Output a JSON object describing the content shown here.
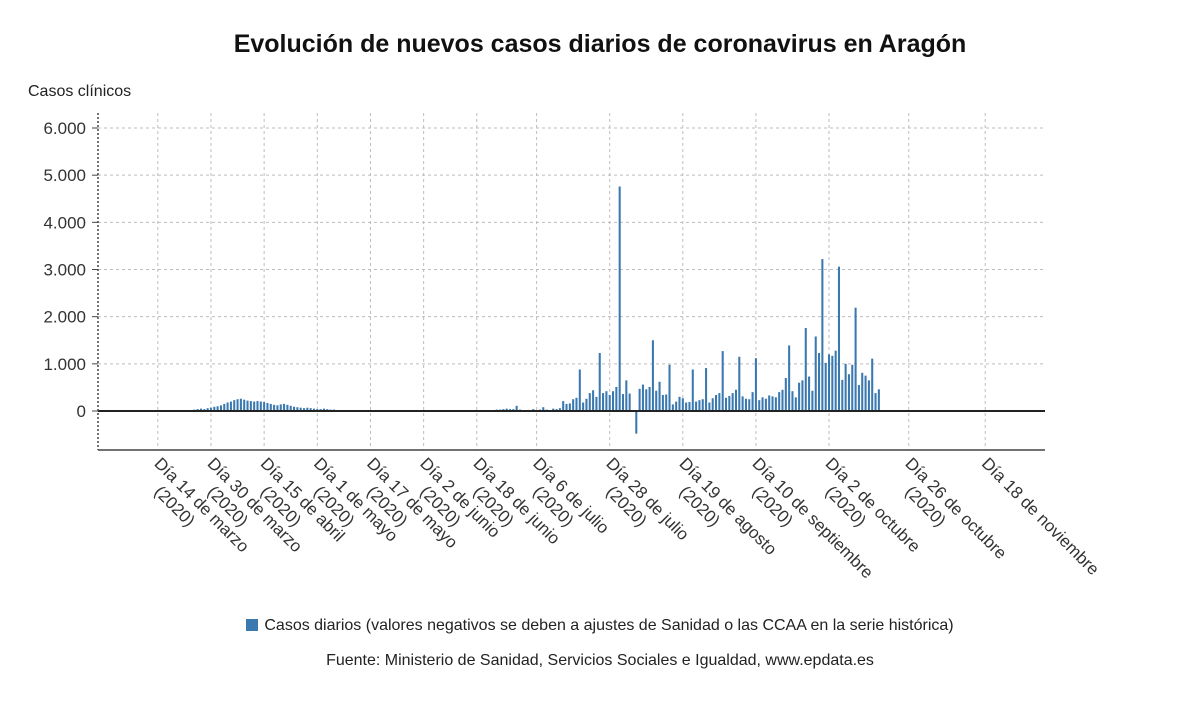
{
  "chart_data": {
    "type": "bar",
    "title": "Evolución de nuevos casos diarios de coronavirus en Aragón",
    "ylabel": "Casos clínicos",
    "ylim": [
      -800,
      6600
    ],
    "yticks": [
      0,
      1000,
      2000,
      3000,
      4000,
      5000,
      6000
    ],
    "ytick_labels": [
      "0",
      "1.000",
      "2.000",
      "3.000",
      "4.000",
      "5.000",
      "6.000"
    ],
    "x_tick_labels": [
      {
        "day": 14,
        "label": [
          "Día 14 de marzo",
          "(2020)"
        ]
      },
      {
        "day": 30,
        "label": [
          "Día 30 de marzo",
          "(2020)"
        ]
      },
      {
        "day": 46,
        "label": [
          "Día 15 de abril",
          "(2020)"
        ]
      },
      {
        "day": 62,
        "label": [
          "Día 1 de mayo",
          "(2020)"
        ]
      },
      {
        "day": 78,
        "label": [
          "Día 17 de mayo",
          "(2020)"
        ]
      },
      {
        "day": 94,
        "label": [
          "Día 2 de junio",
          "(2020)"
        ]
      },
      {
        "day": 110,
        "label": [
          "Día 18 de junio",
          "(2020)"
        ]
      },
      {
        "day": 128,
        "label": [
          "Día 6 de julio",
          "(2020)"
        ]
      },
      {
        "day": 150,
        "label": [
          "Día 28 de julio",
          "(2020)"
        ]
      },
      {
        "day": 172,
        "label": [
          "Día 19 de agosto",
          "(2020)"
        ]
      },
      {
        "day": 194,
        "label": [
          "Día 10 de septiembre",
          "(2020)"
        ]
      },
      {
        "day": 216,
        "label": [
          "Día 2 de octubre",
          "(2020)"
        ]
      },
      {
        "day": 240,
        "label": [
          "Día 26 de octubre",
          "(2020)"
        ]
      },
      {
        "day": 263,
        "label": [
          "Día 18 de noviembre",
          ""
        ]
      }
    ],
    "x_range_days": [
      -4,
      281
    ],
    "series": [
      {
        "name": "Casos diarios (valores negativos se deben a ajustes de Sanidad o las CCAA en la serie histórica)",
        "color": "#3a78b0",
        "start_day": 24,
        "values": [
          20,
          30,
          40,
          50,
          40,
          60,
          70,
          90,
          100,
          120,
          150,
          180,
          200,
          230,
          250,
          260,
          240,
          220,
          210,
          200,
          210,
          200,
          190,
          170,
          150,
          130,
          120,
          140,
          150,
          130,
          110,
          90,
          80,
          70,
          60,
          70,
          60,
          50,
          40,
          40,
          50,
          40,
          30,
          30,
          20,
          20,
          20,
          20,
          20,
          10,
          20,
          20,
          10,
          10,
          20,
          10,
          10,
          10,
          10,
          10,
          10,
          10,
          20,
          10,
          10,
          10,
          10,
          10,
          10,
          20,
          20,
          10,
          10,
          10,
          10,
          10,
          10,
          10,
          10,
          10,
          10,
          10,
          10,
          10,
          10,
          10,
          10,
          10,
          10,
          20,
          20,
          20,
          30,
          30,
          40,
          50,
          40,
          40,
          110,
          30,
          20,
          20,
          10,
          40,
          20,
          30,
          80,
          30,
          20,
          50,
          40,
          60,
          210,
          150,
          160,
          250,
          280,
          880,
          180,
          260,
          380,
          440,
          300,
          1230,
          380,
          420,
          340,
          420,
          510,
          4760,
          360,
          650,
          370,
          20,
          -480,
          470,
          560,
          460,
          510,
          1500,
          430,
          620,
          340,
          350,
          980,
          140,
          200,
          300,
          270,
          180,
          190,
          880,
          200,
          230,
          250,
          910,
          180,
          270,
          340,
          380,
          1270,
          280,
          320,
          380,
          450,
          1150,
          310,
          260,
          250,
          400,
          1120,
          230,
          290,
          260,
          330,
          310,
          290,
          400,
          450,
          700,
          1390,
          420,
          290,
          600,
          650,
          1760,
          730,
          430,
          1580,
          1230,
          3220,
          1020,
          1200,
          1170,
          1280,
          3060,
          660,
          1000,
          780,
          980,
          2190,
          550,
          810,
          750,
          650,
          1110,
          380,
          460
        ]
      }
    ],
    "source": "Fuente: Ministerio de Sanidad, Servicios Sociales e Igualdad, www.epdata.es"
  }
}
